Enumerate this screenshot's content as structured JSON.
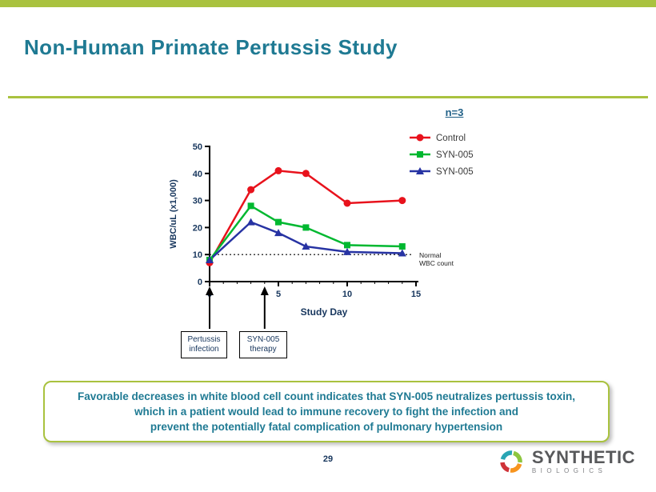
{
  "title": "Non-Human Primate Pertussis Study",
  "chart_data": {
    "type": "line",
    "legend_note": "n=3",
    "x": [
      0,
      3,
      5,
      7,
      10,
      14
    ],
    "series": [
      {
        "name": "Control",
        "marker": "circle",
        "color": "#e8121c",
        "values": [
          7,
          34,
          41,
          40,
          29,
          30
        ]
      },
      {
        "name": "SYN-005",
        "marker": "square",
        "color": "#00b830",
        "values": [
          8,
          28,
          22,
          20,
          13.5,
          13
        ]
      },
      {
        "name": "SYN-005",
        "marker": "triangle",
        "color": "#2733a3",
        "values": [
          8,
          22,
          18,
          13,
          11,
          10.5
        ]
      }
    ],
    "xlabel": "Study Day",
    "ylabel": "WBC/uL (x1,000)",
    "xlim": [
      0,
      15
    ],
    "ylim": [
      0,
      50
    ],
    "xticks": [
      0,
      5,
      10,
      15
    ],
    "yticks": [
      0,
      10,
      20,
      30,
      40,
      50
    ],
    "grid": false,
    "legend_position": "top-right",
    "reference_line": {
      "y": 10,
      "style": "dotted",
      "label": "Normal WBC count",
      "label_lines": [
        "Normal",
        "WBC count"
      ]
    },
    "annotations": [
      {
        "x": 0,
        "label": "Pertussis infection"
      },
      {
        "x": 4,
        "label": "SYN-005 therapy"
      }
    ]
  },
  "callout": {
    "lines": [
      "Favorable decreases in white blood cell count indicates that SYN-005 neutralizes pertussis toxin,",
      "which in a patient would lead to immune recovery to fight the infection and",
      "prevent the potentially fatal complication of pulmonary hypertension"
    ]
  },
  "page_number": "29",
  "brand": {
    "name": "SYNTHETIC",
    "sub": "BIOLOGICS"
  },
  "colors": {
    "accent_green": "#a9c23f",
    "title_teal": "#1f7a93",
    "navy": "#17365d",
    "control_red": "#e8121c",
    "syn005_green": "#00b830",
    "syn005_blue": "#2733a3"
  }
}
